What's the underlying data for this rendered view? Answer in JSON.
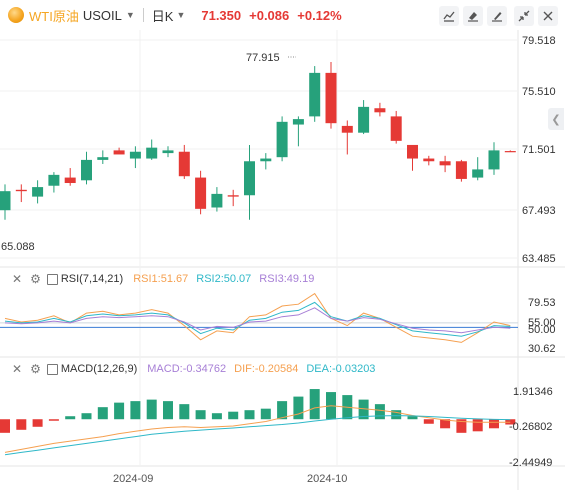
{
  "header": {
    "name": "WTI原油",
    "code": "USOIL",
    "period": "日K",
    "price": "71.350",
    "change": "+0.086",
    "change_pct": "+0.12%"
  },
  "toolbar": [
    "draw-icon",
    "eraser-icon",
    "brush-icon",
    "collapse-icon",
    "close-icon"
  ],
  "colors": {
    "up": "#e53935",
    "down": "#26a17b",
    "rsi1": "#f5a050",
    "rsi2": "#2fb8c8",
    "rsi3": "#a77fd6",
    "dif": "#f5a050",
    "dea": "#2fb8c8",
    "accent": "#f5a623"
  },
  "price_axis": [
    "79.518",
    "75.510",
    "71.501",
    "67.493",
    "63.485"
  ],
  "annotations": {
    "high": "77.915",
    "low": "65.088"
  },
  "rsi": {
    "label": "RSI(7,14,21)",
    "rsi1": "RSI1:51.67",
    "rsi2": "RSI2:50.07",
    "rsi3": "RSI3:49.19",
    "axis": [
      "79.53",
      "55.00",
      "50.00",
      "30.62"
    ]
  },
  "macd": {
    "label": "MACD(12,26,9)",
    "macd": "MACD:-0.34762",
    "dif": "DIF:-0.20584",
    "dea": "DEA:-0.03203",
    "axis": [
      "1.91346",
      "-0.26802",
      "-2.44949"
    ]
  },
  "time_axis": [
    "2024-09",
    "2024-10"
  ],
  "chart_data": {
    "type": "candlestick",
    "y_range": [
      63.485,
      79.518
    ],
    "candles": [
      {
        "o": 67.0,
        "h": 68.9,
        "l": 66.3,
        "c": 68.4
      },
      {
        "o": 68.5,
        "h": 68.9,
        "l": 67.6,
        "c": 68.4
      },
      {
        "o": 68.0,
        "h": 69.2,
        "l": 67.5,
        "c": 68.7
      },
      {
        "o": 68.8,
        "h": 69.8,
        "l": 68.3,
        "c": 69.6
      },
      {
        "o": 69.4,
        "h": 70.1,
        "l": 68.8,
        "c": 69.0
      },
      {
        "o": 69.2,
        "h": 71.3,
        "l": 68.9,
        "c": 70.7
      },
      {
        "o": 70.7,
        "h": 71.4,
        "l": 70.4,
        "c": 70.9
      },
      {
        "o": 71.4,
        "h": 71.6,
        "l": 71.2,
        "c": 71.1
      },
      {
        "o": 70.8,
        "h": 71.7,
        "l": 70.1,
        "c": 71.3
      },
      {
        "o": 70.8,
        "h": 72.2,
        "l": 70.7,
        "c": 71.6
      },
      {
        "o": 71.2,
        "h": 71.7,
        "l": 70.9,
        "c": 71.4
      },
      {
        "o": 71.3,
        "h": 71.8,
        "l": 69.3,
        "c": 69.5
      },
      {
        "o": 69.4,
        "h": 69.9,
        "l": 66.7,
        "c": 67.1
      },
      {
        "o": 67.2,
        "h": 68.7,
        "l": 66.9,
        "c": 68.2
      },
      {
        "o": 68.1,
        "h": 68.5,
        "l": 67.3,
        "c": 68.0
      },
      {
        "o": 68.1,
        "h": 71.8,
        "l": 66.3,
        "c": 70.6
      },
      {
        "o": 70.6,
        "h": 71.2,
        "l": 70.0,
        "c": 70.8
      },
      {
        "o": 70.9,
        "h": 73.9,
        "l": 70.6,
        "c": 73.5
      },
      {
        "o": 73.3,
        "h": 73.9,
        "l": 71.7,
        "c": 73.7
      },
      {
        "o": 73.9,
        "h": 77.6,
        "l": 73.5,
        "c": 77.1
      },
      {
        "o": 77.1,
        "h": 77.9,
        "l": 73.0,
        "c": 73.4
      },
      {
        "o": 73.2,
        "h": 73.6,
        "l": 71.1,
        "c": 72.7
      },
      {
        "o": 72.7,
        "h": 75.1,
        "l": 72.6,
        "c": 74.6
      },
      {
        "o": 74.5,
        "h": 74.9,
        "l": 73.9,
        "c": 74.2
      },
      {
        "o": 73.9,
        "h": 74.3,
        "l": 71.9,
        "c": 72.1
      },
      {
        "o": 71.8,
        "h": 71.8,
        "l": 69.9,
        "c": 70.8
      },
      {
        "o": 70.8,
        "h": 71.0,
        "l": 70.3,
        "c": 70.6
      },
      {
        "o": 70.6,
        "h": 71.0,
        "l": 69.8,
        "c": 70.3
      },
      {
        "o": 70.6,
        "h": 70.7,
        "l": 69.1,
        "c": 69.3
      },
      {
        "o": 69.4,
        "h": 70.9,
        "l": 69.2,
        "c": 70.0
      },
      {
        "o": 70.0,
        "h": 72.0,
        "l": 69.6,
        "c": 71.4
      },
      {
        "o": 71.35,
        "h": 71.4,
        "l": 71.3,
        "c": 71.3
      }
    ],
    "rsi_range": [
      20,
      92
    ],
    "rsi1": [
      60,
      56,
      58,
      63,
      55,
      66,
      68,
      64,
      66,
      70,
      66,
      52,
      36,
      46,
      44,
      62,
      64,
      74,
      76,
      88,
      60,
      52,
      66,
      60,
      50,
      40,
      38,
      36,
      33,
      44,
      56,
      52
    ],
    "rsi2": [
      57,
      55,
      56,
      60,
      56,
      63,
      65,
      63,
      64,
      66,
      64,
      55,
      43,
      49,
      47,
      58,
      60,
      67,
      69,
      78,
      62,
      57,
      63,
      60,
      53,
      46,
      44,
      42,
      40,
      45,
      52,
      51
    ],
    "rsi3": [
      55,
      54,
      55,
      57,
      55,
      60,
      62,
      61,
      62,
      63,
      62,
      56,
      47,
      51,
      50,
      56,
      57,
      62,
      64,
      72,
      60,
      57,
      61,
      59,
      54,
      49,
      47,
      46,
      44,
      47,
      50,
      49
    ],
    "macd_range": [
      -2.9,
      2.6
    ],
    "macd_hist": [
      -0.9,
      -0.7,
      -0.5,
      -0.1,
      0.2,
      0.4,
      0.8,
      1.1,
      1.2,
      1.3,
      1.2,
      1.0,
      0.6,
      0.4,
      0.5,
      0.6,
      0.7,
      1.2,
      1.5,
      2.0,
      1.8,
      1.6,
      1.3,
      1.0,
      0.6,
      0.2,
      -0.3,
      -0.6,
      -0.9,
      -0.8,
      -0.6,
      -0.35
    ],
    "dif": [
      -2.2,
      -2.0,
      -1.8,
      -1.6,
      -1.45,
      -1.3,
      -1.15,
      -0.95,
      -0.8,
      -0.65,
      -0.55,
      -0.5,
      -0.55,
      -0.5,
      -0.45,
      -0.3,
      -0.15,
      0.1,
      0.35,
      0.75,
      0.9,
      0.8,
      0.7,
      0.6,
      0.45,
      0.25,
      0.1,
      -0.05,
      -0.15,
      -0.2,
      -0.2,
      -0.2
    ],
    "dea": [
      -2.35,
      -2.2,
      -2.05,
      -1.9,
      -1.75,
      -1.6,
      -1.45,
      -1.3,
      -1.15,
      -1.0,
      -0.9,
      -0.8,
      -0.72,
      -0.65,
      -0.58,
      -0.5,
      -0.42,
      -0.35,
      -0.25,
      -0.12,
      0.0,
      0.1,
      0.18,
      0.22,
      0.24,
      0.22,
      0.18,
      0.12,
      0.06,
      0.02,
      -0.01,
      -0.03
    ]
  }
}
